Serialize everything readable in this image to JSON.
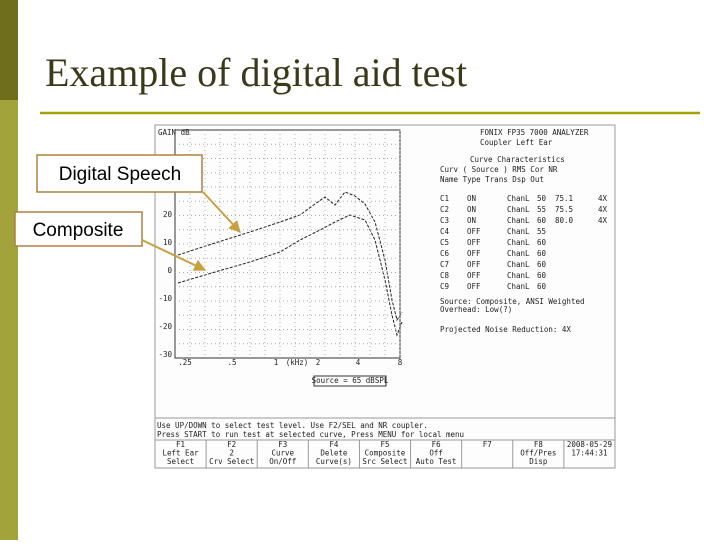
{
  "slide": {
    "title": "Example of digital aid test",
    "callouts": [
      "Digital Speech",
      "Composite"
    ]
  },
  "screen": {
    "header": [
      "FONIX FP35 7000 ANALYZER",
      "Coupler    Left Ear"
    ],
    "y_axis": {
      "label": "GAIN dB",
      "ticks": [
        "20",
        "10",
        "0",
        "-10",
        "-20",
        "-30"
      ]
    },
    "x_axis": {
      "ticks": [
        ".25",
        ".5",
        "1",
        "(kHz)",
        "2",
        "4",
        "8"
      ]
    },
    "source_note": "Source = 65 dBSPL",
    "curve_panel": {
      "title": "Curve Characteristics",
      "columns": [
        "Curv  (  Source  )  RMS  Cor  NR",
        "Name  Type  Trans  Dsp  Out"
      ],
      "rows": [
        [
          "C1",
          "ON",
          "ChanL",
          "50",
          "75.1",
          "4X"
        ],
        [
          "C2",
          "ON",
          "ChanL",
          "55",
          "75.5",
          "4X"
        ],
        [
          "C3",
          "ON",
          "ChanL",
          "60",
          "80.0",
          "4X"
        ],
        [
          "C4",
          "OFF",
          "ChanL",
          "55"
        ],
        [
          "C5",
          "OFF",
          "ChanL",
          "60"
        ],
        [
          "C6",
          "OFF",
          "ChanL",
          "60"
        ],
        [
          "C7",
          "OFF",
          "ChanL",
          "60"
        ],
        [
          "C8",
          "OFF",
          "ChanL",
          "60"
        ],
        [
          "C9",
          "OFF",
          "ChanL",
          "60"
        ]
      ]
    },
    "notes": [
      "Source: Composite, ANSI Weighted",
      "Overhead: Low(?)",
      "Projected Noise Reduction: 4X"
    ],
    "instructions": [
      "Use UP/DOWN to select test level. Use F2/SEL and NR coupler.",
      "Press START to run test at selected curve, Press MENU for local menu"
    ],
    "function_keys": [
      [
        "F1",
        "Left Ear",
        "Select"
      ],
      [
        "F2",
        "2",
        "Crv Select"
      ],
      [
        "F3",
        "Curve",
        "On/Off"
      ],
      [
        "F4",
        "Delete",
        "Curve(s)"
      ],
      [
        "F5",
        "Composite",
        "Src Select"
      ],
      [
        "F6",
        "Off",
        "Auto Test"
      ],
      [
        "F7"
      ],
      [
        "F8",
        "Off/Pres",
        "Disp"
      ],
      [
        "2008-05-29",
        "17:44:31"
      ]
    ]
  }
}
